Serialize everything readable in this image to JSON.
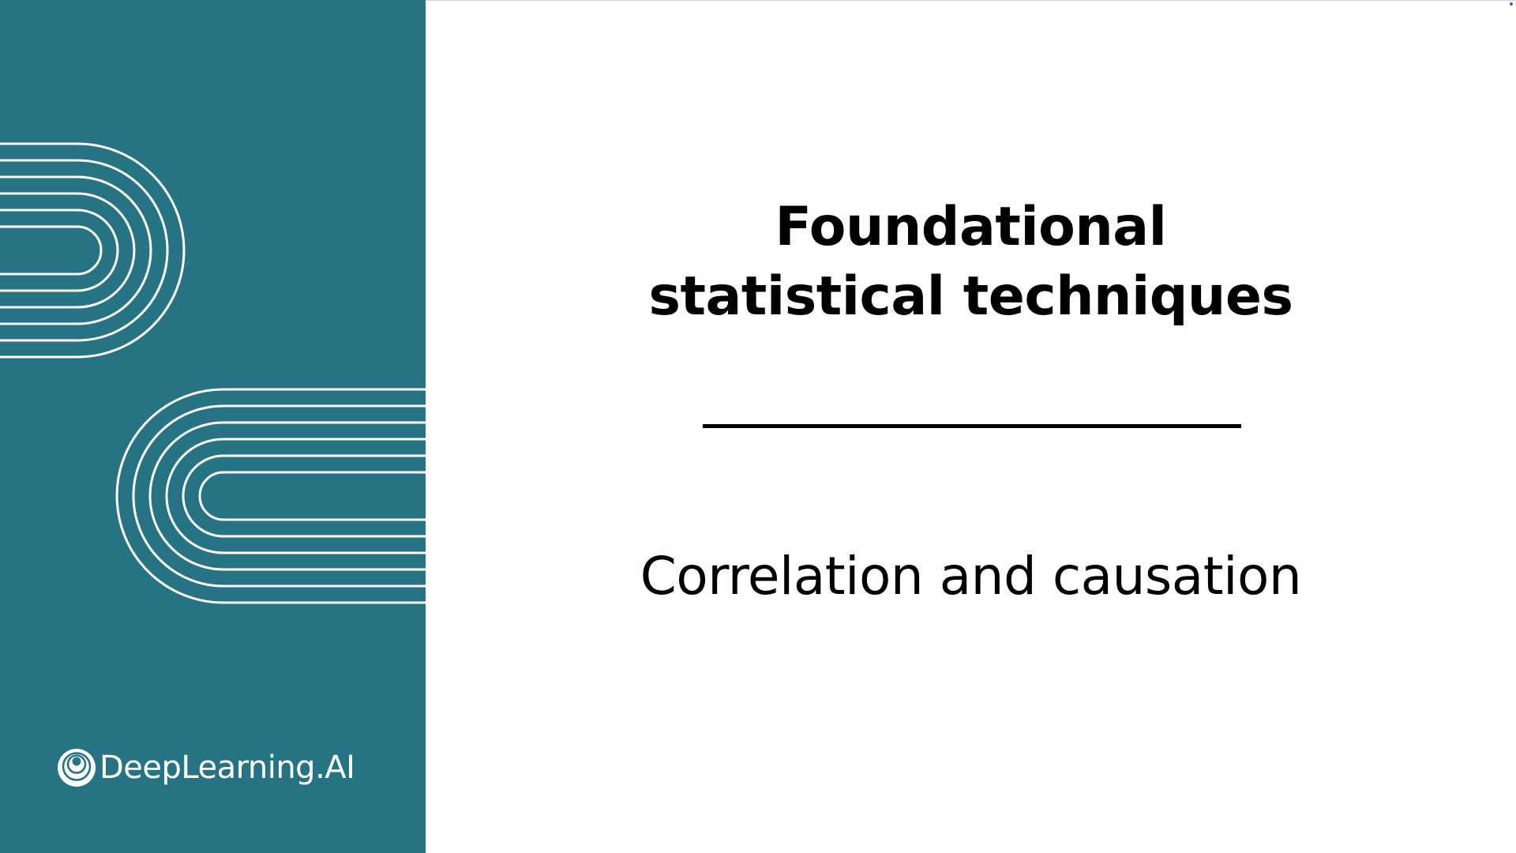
{
  "slide": {
    "title_lines": [
      "Foundational",
      "statistical techniques"
    ],
    "subtitle": "Correlation and causation",
    "brand": {
      "logo_text": "DeepLearning.AI",
      "logo_icon": "deeplearning-ai-logo-icon"
    },
    "colors": {
      "panel": "#267384",
      "stroke": "#ffffff",
      "text": "#000000",
      "background": "#ffffff"
    }
  }
}
